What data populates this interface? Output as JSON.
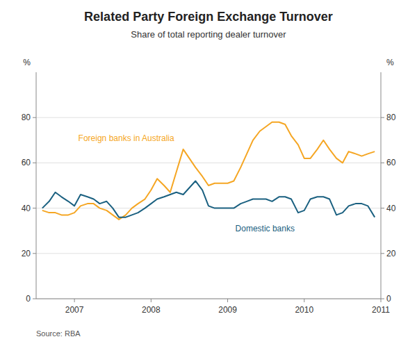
{
  "chart_data": {
    "type": "line",
    "title": "Related Party Foreign Exchange Turnover",
    "subtitle": "Share of total reporting dealer turnover",
    "source": "Source: RBA",
    "y_label": "%",
    "y2_label": "%",
    "x": [
      2006.58,
      2006.67,
      2006.75,
      2006.83,
      2006.92,
      2007.0,
      2007.08,
      2007.17,
      2007.25,
      2007.33,
      2007.42,
      2007.5,
      2007.58,
      2007.67,
      2007.75,
      2007.83,
      2007.92,
      2008.0,
      2008.08,
      2008.17,
      2008.25,
      2008.33,
      2008.42,
      2008.5,
      2008.58,
      2008.67,
      2008.75,
      2008.83,
      2008.92,
      2009.0,
      2009.08,
      2009.17,
      2009.25,
      2009.33,
      2009.42,
      2009.5,
      2009.58,
      2009.67,
      2009.75,
      2009.83,
      2009.92,
      2010.0,
      2010.08,
      2010.17,
      2010.25,
      2010.33,
      2010.42,
      2010.5,
      2010.58,
      2010.67,
      2010.75,
      2010.83,
      2010.92
    ],
    "series": [
      {
        "name": "Foreign banks in Australia",
        "color": "#f5a623",
        "label_position": {
          "x": 2007.05,
          "y": 71
        },
        "values": [
          39,
          38,
          38,
          37,
          37,
          38,
          41,
          42,
          42,
          40,
          39,
          37,
          35,
          37,
          40,
          42,
          44,
          48,
          53,
          50,
          47,
          56,
          66,
          62,
          58,
          54,
          50,
          51,
          51,
          51,
          52,
          58,
          64,
          70,
          74,
          76,
          78,
          78,
          77,
          72,
          68,
          62,
          62,
          66,
          70,
          66,
          62,
          60,
          65,
          64,
          63,
          64,
          65
        ]
      },
      {
        "name": "Domestic banks",
        "color": "#1a6080",
        "label_position": {
          "x": 2009.1,
          "y": 31
        },
        "values": [
          40,
          43,
          47,
          45,
          43,
          41,
          46,
          45,
          44,
          42,
          43,
          40,
          36,
          36,
          37,
          38,
          40,
          42,
          44,
          45,
          46,
          47,
          46,
          49,
          52,
          48,
          41,
          40,
          40,
          40,
          40,
          42,
          43,
          44,
          44,
          44,
          43,
          45,
          45,
          44,
          38,
          39,
          44,
          45,
          45,
          44,
          37,
          38,
          41,
          42,
          42,
          41,
          36
        ]
      }
    ],
    "xlim": [
      2006.5,
      2011.0
    ],
    "xticks": [
      2007,
      2008,
      2009,
      2010,
      2011
    ],
    "ylim": [
      0,
      100
    ],
    "yticks": [
      0,
      20,
      40,
      60,
      80
    ],
    "y2lim": [
      0,
      100
    ],
    "y2ticks": [
      0,
      20,
      40,
      60,
      80
    ],
    "grid": "y"
  }
}
